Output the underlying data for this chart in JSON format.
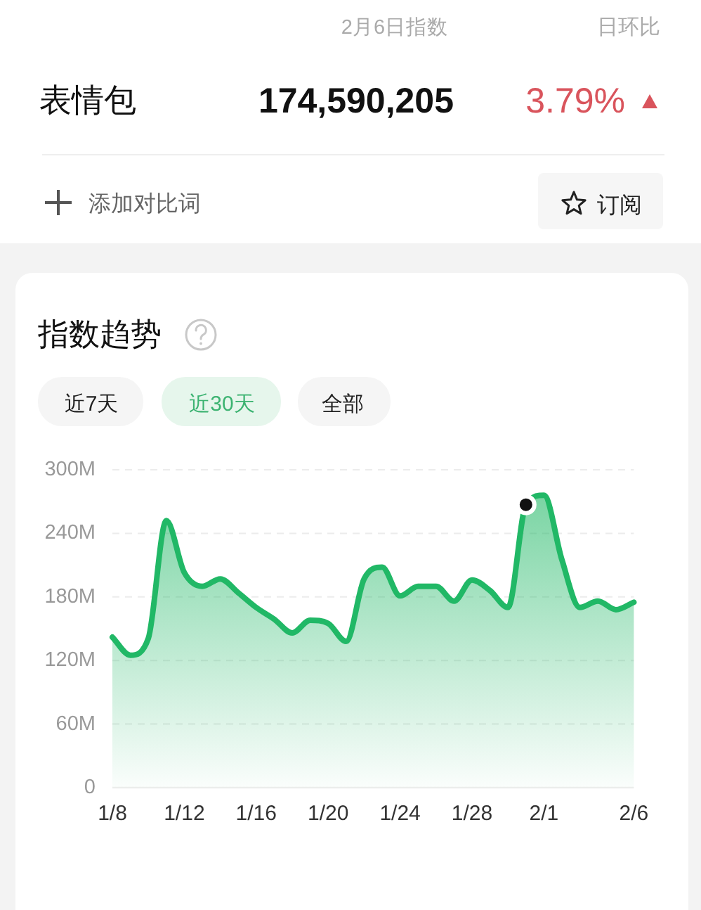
{
  "chart_data": {
    "type": "area",
    "title": "指数趋势",
    "annotations": [
      "2月6日指数",
      "日环比",
      "表情包",
      "174,590,205",
      "3.79%",
      "添加对比词",
      "订阅",
      "近7天",
      "近30天",
      "全部"
    ],
    "categories": [
      "1/8",
      null,
      null,
      null,
      "1/12",
      null,
      null,
      null,
      "1/16",
      null,
      null,
      null,
      "1/20",
      null,
      null,
      null,
      "1/24",
      null,
      null,
      null,
      "1/28",
      null,
      null,
      null,
      "2/1",
      null,
      null,
      null,
      null,
      "2/6"
    ],
    "series": [
      {
        "color": "#21b866",
        "values": [
          142,
          125,
          141,
          252,
          203,
          190,
          197,
          184,
          170,
          159,
          146,
          158,
          155,
          138,
          197,
          208,
          181,
          190,
          190,
          176,
          196,
          186,
          170,
          267,
          276,
          215,
          170,
          176,
          168,
          175
        ]
      },
      {
        "type": "scatter",
        "marker": "circle",
        "color": "#111111",
        "values": [
          null,
          null,
          null,
          null,
          null,
          null,
          null,
          null,
          null,
          null,
          null,
          null,
          null,
          null,
          null,
          null,
          null,
          null,
          null,
          null,
          null,
          null,
          null,
          267,
          null,
          null,
          null,
          null,
          null,
          null
        ]
      }
    ],
    "ylim": [
      0,
      300
    ],
    "yticks": [
      0,
      {
        "value": 60,
        "label": "60M"
      },
      {
        "value": 120,
        "label": "120M"
      },
      {
        "value": 180,
        "label": "180M"
      },
      {
        "value": 240,
        "label": "240M"
      },
      {
        "value": 300,
        "label": "300M"
      }
    ],
    "grid": "y"
  }
}
